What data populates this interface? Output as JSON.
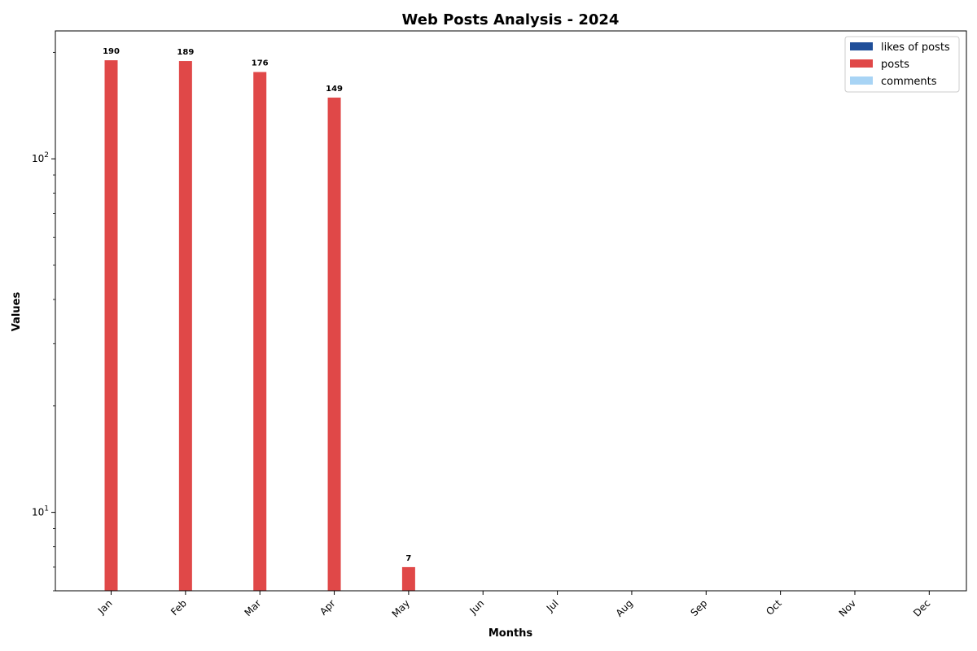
{
  "chart_data": {
    "type": "bar",
    "title": "Web Posts Analysis - 2024",
    "xlabel": "Months",
    "ylabel": "Values",
    "yscale": "log",
    "ylim": [
      6,
      230
    ],
    "y_ticks": [
      {
        "value": 10,
        "base": "10",
        "exp": "1"
      },
      {
        "value": 100,
        "base": "10",
        "exp": "2"
      }
    ],
    "categories": [
      "Jan",
      "Feb",
      "Mar",
      "Apr",
      "May",
      "Jun",
      "Jul",
      "Aug",
      "Sep",
      "Oct",
      "Nov",
      "Dec"
    ],
    "series": [
      {
        "name": "likes of posts",
        "color": "#1f4e99",
        "values": [
          0,
          0,
          0,
          0,
          0,
          0,
          0,
          0,
          0,
          0,
          0,
          0
        ]
      },
      {
        "name": "posts",
        "color": "#e04848",
        "values": [
          190,
          189,
          176,
          149,
          7,
          0,
          0,
          0,
          0,
          0,
          0,
          0
        ]
      },
      {
        "name": "comments",
        "color": "#a8d4f5",
        "values": [
          0,
          0,
          0,
          0,
          0,
          0,
          0,
          0,
          0,
          0,
          0,
          0
        ]
      }
    ],
    "grid": false,
    "legend_position": "top-right"
  }
}
